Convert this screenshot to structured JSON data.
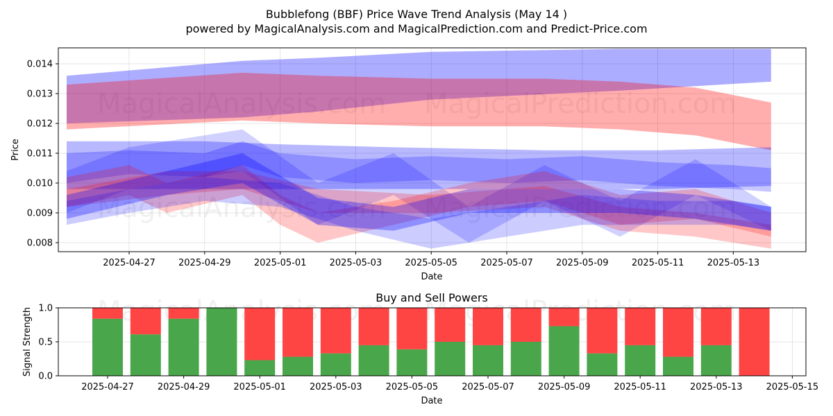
{
  "title_line1": "Bubblefong (BBF) Price Wave Trend Analysis (May 14 )",
  "title_line2": "powered by MagicalAnalysis.com and MagicalPrediction.com and Predict-Price.com",
  "watermarks": [
    "MagicalAnalysis.com",
    "MagicalPrediction.com"
  ],
  "colors": {
    "blue_band": "#0000ff",
    "red_band": "#ff0000",
    "buy": "#4aa64a",
    "sell": "#ff4444",
    "grid": "#dddddd"
  },
  "chart_data": [
    {
      "type": "area",
      "title": "",
      "xlabel": "Date",
      "ylabel": "Price",
      "xlim": [
        "2025-04-25",
        "2025-05-14"
      ],
      "ylim": [
        0.0077,
        0.0145
      ],
      "x_ticks": [
        "2025-04-27",
        "2025-04-29",
        "2025-05-01",
        "2025-05-03",
        "2025-05-05",
        "2025-05-07",
        "2025-05-09",
        "2025-05-11",
        "2025-05-13"
      ],
      "y_ticks": [
        "0.008",
        "0.009",
        "0.010",
        "0.011",
        "0.012",
        "0.013",
        "0.014"
      ],
      "grid": true,
      "bands": [
        {
          "color": "blue",
          "alpha": 0.32,
          "x": [
            "2025-04-25",
            "2025-04-30",
            "2025-05-02",
            "2025-05-05",
            "2025-05-10",
            "2025-05-14"
          ],
          "upper": [
            0.0136,
            0.0141,
            0.0142,
            0.0144,
            0.0145,
            0.0145
          ],
          "lower": [
            0.012,
            0.0122,
            0.0124,
            0.0128,
            0.0131,
            0.0134
          ]
        },
        {
          "color": "red",
          "alpha": 0.32,
          "x": [
            "2025-04-25",
            "2025-04-30",
            "2025-05-02",
            "2025-05-05",
            "2025-05-08",
            "2025-05-10",
            "2025-05-12",
            "2025-05-14"
          ],
          "upper": [
            0.0133,
            0.0137,
            0.0136,
            0.0135,
            0.0135,
            0.0134,
            0.0132,
            0.0127
          ],
          "lower": [
            0.0118,
            0.0121,
            0.012,
            0.0119,
            0.0119,
            0.0118,
            0.0116,
            0.0111
          ]
        },
        {
          "color": "blue",
          "alpha": 0.28,
          "x": [
            "2025-04-25",
            "2025-04-29",
            "2025-05-01",
            "2025-05-04",
            "2025-05-08",
            "2025-05-11",
            "2025-05-14"
          ],
          "upper": [
            0.0114,
            0.0114,
            0.0113,
            0.0112,
            0.0111,
            0.0111,
            0.0112
          ],
          "lower": [
            0.0098,
            0.0098,
            0.0098,
            0.0098,
            0.0098,
            0.0098,
            0.0099
          ]
        },
        {
          "color": "blue",
          "alpha": 0.22,
          "x": [
            "2025-04-25",
            "2025-04-27",
            "2025-04-29",
            "2025-04-30",
            "2025-05-01",
            "2025-05-03",
            "2025-05-05",
            "2025-05-07",
            "2025-05-09",
            "2025-05-11",
            "2025-05-13",
            "2025-05-14"
          ],
          "upper": [
            0.011,
            0.0111,
            0.011,
            0.0114,
            0.011,
            0.0108,
            0.0109,
            0.0108,
            0.0109,
            0.0107,
            0.0106,
            0.0105
          ],
          "lower": [
            0.01,
            0.0103,
            0.0102,
            0.0106,
            0.0102,
            0.01,
            0.0101,
            0.01,
            0.0101,
            0.0099,
            0.0098,
            0.0097
          ]
        },
        {
          "color": "blue",
          "alpha": 0.18,
          "x": [
            "2025-04-25",
            "2025-04-27",
            "2025-04-30",
            "2025-05-02",
            "2025-05-04",
            "2025-05-06",
            "2025-05-08",
            "2025-05-10",
            "2025-05-12",
            "2025-05-14"
          ],
          "upper": [
            0.0104,
            0.0112,
            0.0118,
            0.01,
            0.011,
            0.0092,
            0.0106,
            0.0094,
            0.0108,
            0.0092
          ],
          "lower": [
            0.009,
            0.0098,
            0.0104,
            0.0086,
            0.0096,
            0.008,
            0.0094,
            0.0082,
            0.0096,
            0.0084
          ]
        },
        {
          "color": "red",
          "alpha": 0.22,
          "x": [
            "2025-04-25",
            "2025-04-27",
            "2025-04-28",
            "2025-04-30",
            "2025-05-01",
            "2025-05-02",
            "2025-05-04",
            "2025-05-06",
            "2025-05-08",
            "2025-05-10",
            "2025-05-12",
            "2025-05-14"
          ],
          "upper": [
            0.0102,
            0.0106,
            0.01,
            0.0106,
            0.0096,
            0.009,
            0.0094,
            0.01,
            0.0104,
            0.0096,
            0.0098,
            0.009
          ],
          "lower": [
            0.0092,
            0.0096,
            0.009,
            0.0096,
            0.0086,
            0.008,
            0.0086,
            0.0092,
            0.0094,
            0.0086,
            0.0088,
            0.0082
          ]
        },
        {
          "color": "red",
          "alpha": 0.22,
          "x": [
            "2025-04-25",
            "2025-04-28",
            "2025-04-30",
            "2025-05-02",
            "2025-05-05",
            "2025-05-08",
            "2025-05-10",
            "2025-05-12",
            "2025-05-14"
          ],
          "upper": [
            0.0098,
            0.0104,
            0.0104,
            0.0098,
            0.0096,
            0.0099,
            0.0092,
            0.009,
            0.0086
          ],
          "lower": [
            0.0092,
            0.0096,
            0.0098,
            0.009,
            0.009,
            0.0092,
            0.0084,
            0.0082,
            0.0078
          ]
        },
        {
          "color": "blue",
          "alpha": 0.3,
          "x": [
            "2025-04-25",
            "2025-04-28",
            "2025-04-30",
            "2025-05-02",
            "2025-05-04",
            "2025-05-06",
            "2025-05-08",
            "2025-05-10",
            "2025-05-12",
            "2025-05-14"
          ],
          "upper": [
            0.0096,
            0.0104,
            0.011,
            0.0095,
            0.0092,
            0.0098,
            0.0098,
            0.0098,
            0.0096,
            0.0092
          ],
          "lower": [
            0.0088,
            0.0096,
            0.01,
            0.0086,
            0.0084,
            0.009,
            0.009,
            0.009,
            0.0088,
            0.0084
          ]
        },
        {
          "color": "blue",
          "alpha": 0.2,
          "x": [
            "2025-04-25",
            "2025-04-27",
            "2025-04-29",
            "2025-05-01",
            "2025-05-03",
            "2025-05-05",
            "2025-05-07",
            "2025-05-09",
            "2025-05-11",
            "2025-05-13",
            "2025-05-14"
          ],
          "upper": [
            0.0094,
            0.0098,
            0.0102,
            0.01,
            0.0092,
            0.0088,
            0.0092,
            0.0096,
            0.0094,
            0.0094,
            0.0092
          ],
          "lower": [
            0.0086,
            0.009,
            0.0094,
            0.0092,
            0.0084,
            0.0078,
            0.0082,
            0.0086,
            0.0086,
            0.0086,
            0.0084
          ]
        }
      ]
    },
    {
      "type": "bar",
      "title": "Buy and Sell Powers",
      "xlabel": "Date",
      "ylabel": "Signal Strength",
      "ylim": [
        0,
        1.0
      ],
      "y_ticks": [
        "0.0",
        "0.5",
        "1.0"
      ],
      "x_ticks": [
        "2025-04-27",
        "2025-04-29",
        "2025-05-01",
        "2025-05-03",
        "2025-05-05",
        "2025-05-07",
        "2025-05-09",
        "2025-05-11",
        "2025-05-13",
        "2025-05-15"
      ],
      "categories": [
        "2025-04-27",
        "2025-04-28",
        "2025-04-29",
        "2025-04-30",
        "2025-05-01",
        "2025-05-02",
        "2025-05-03",
        "2025-05-04",
        "2025-05-05",
        "2025-05-06",
        "2025-05-07",
        "2025-05-08",
        "2025-05-09",
        "2025-05-10",
        "2025-05-11",
        "2025-05-12",
        "2025-05-13",
        "2025-05-14"
      ],
      "series": [
        {
          "name": "Buy",
          "values": [
            0.84,
            0.61,
            0.84,
            1.0,
            0.23,
            0.28,
            0.33,
            0.45,
            0.39,
            0.5,
            0.45,
            0.5,
            0.73,
            0.33,
            0.45,
            0.28,
            0.45,
            0.0
          ]
        },
        {
          "name": "Sell",
          "values": [
            0.16,
            0.39,
            0.16,
            0.0,
            0.77,
            0.72,
            0.67,
            0.55,
            0.61,
            0.5,
            0.55,
            0.5,
            0.27,
            0.67,
            0.55,
            0.72,
            0.55,
            1.0
          ]
        }
      ],
      "grid": true
    }
  ]
}
